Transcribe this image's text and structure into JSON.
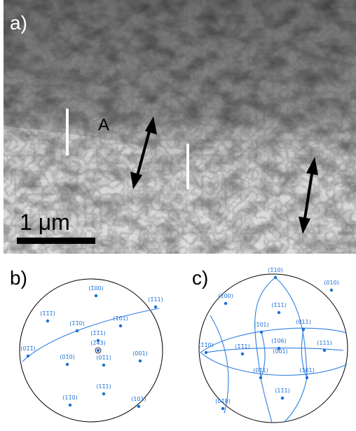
{
  "panels": {
    "a": {
      "label": "a)",
      "annotation": "A",
      "scale_bar": "1 μm"
    },
    "b": {
      "label": "b)",
      "poles": [
        "(1̄00)",
        "(1̄11)",
        "(1̄1̄1̄)",
        "(1̄1̄0)",
        "(1̄01)",
        "(1̄1̄1)",
        "(2̄43)",
        "(01̄1̄)",
        "(01̄0)",
        "(01̄1)",
        "(001)",
        "(11̄1)",
        "(11̄0)",
        "(101)"
      ]
    },
    "c": {
      "label": "c)",
      "poles": [
        "(1̄10)",
        "(1̄00)",
        "(010)",
        "(1̄11)",
        "(1̄01)",
        "(011)",
        "(1̄1̄0)",
        "(1̄1̄1)",
        "(1̄06)",
        "(0̄01)",
        "(111)",
        "(01̄1)",
        "(101)",
        "(11̄1)",
        "(01̄0)"
      ]
    }
  }
}
